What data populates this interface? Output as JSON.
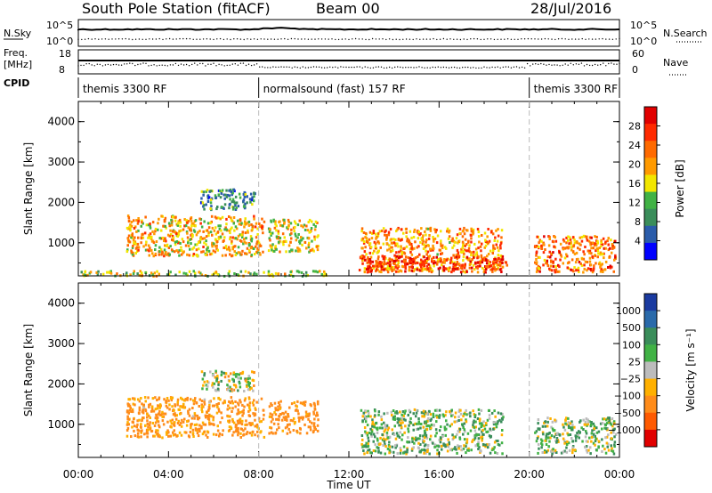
{
  "header": {
    "station": "South Pole Station (fitACF)",
    "beam": "Beam 00",
    "date": "28/Jul/2016"
  },
  "left_labels": {
    "nsky": "N.Sky",
    "freq_line1": "Freq.",
    "freq_line2": "[MHz]",
    "cpid": "CPID"
  },
  "right_labels": {
    "nsearch": "N.Search",
    "nave": "Nave"
  },
  "noise_axis": {
    "top": "10^5",
    "bottom": "10^0"
  },
  "freq_axis": {
    "top": "18",
    "bottom": "8"
  },
  "nave_axis": {
    "top": "60",
    "bottom": "0"
  },
  "cpid_segments": [
    {
      "label": "themis 3300 RF",
      "start": 0,
      "end": 8
    },
    {
      "label": "normalsound (fast) 157 RF",
      "start": 8,
      "end": 20
    },
    {
      "label": "themis 3300 RF",
      "start": 20,
      "end": 24
    }
  ],
  "colors": {
    "power": [
      "#0000ff",
      "#2a5caa",
      "#3a8d5a",
      "#41b245",
      "#f2e600",
      "#ff9a00",
      "#ff6a00",
      "#ff2a00",
      "#e10000"
    ],
    "velocity": [
      "#e10000",
      "#ff5a00",
      "#ff8c1a",
      "#ffb000",
      "#bcbcbc",
      "#41b245",
      "#3a8d5a",
      "#2a6aaa",
      "#1a3aa0"
    ]
  },
  "chart_data": [
    {
      "type": "heatmap",
      "title": "",
      "xlabel": "Time UT",
      "ylabel": "Slant Range [km]",
      "xlim": [
        0,
        24
      ],
      "ylim": [
        180,
        4500
      ],
      "x_ticks": [
        "00:00",
        "04:00",
        "08:00",
        "12:00",
        "16:00",
        "20:00",
        "00:00"
      ],
      "y_ticks": [
        "1000",
        "2000",
        "3000",
        "4000"
      ],
      "colorbar": {
        "label": "Power [dB]",
        "ticks": [
          "4",
          "8",
          "12",
          "16",
          "20",
          "24",
          "28"
        ],
        "range": [
          0,
          30
        ]
      },
      "regions": [
        {
          "t0": 2.1,
          "t1": 8.2,
          "r0": 700,
          "r1": 1700,
          "value": 18
        },
        {
          "t0": 5.4,
          "t1": 7.8,
          "r0": 1850,
          "r1": 2350,
          "value": 8
        },
        {
          "t0": 8.4,
          "t1": 10.6,
          "r0": 800,
          "r1": 1600,
          "value": 16
        },
        {
          "t0": 12.5,
          "t1": 18.8,
          "r0": 300,
          "r1": 1400,
          "value": 20
        },
        {
          "t0": 12.4,
          "t1": 19.0,
          "r0": 300,
          "r1": 700,
          "value": 26
        },
        {
          "t0": 20.2,
          "t1": 23.8,
          "r0": 300,
          "r1": 1200,
          "value": 22
        },
        {
          "t0": 0,
          "t1": 11,
          "r0": 200,
          "r1": 330,
          "value": 14
        }
      ]
    },
    {
      "type": "heatmap",
      "title": "",
      "xlabel": "Time UT",
      "ylabel": "Slant Range [km]",
      "xlim": [
        0,
        24
      ],
      "ylim": [
        180,
        4500
      ],
      "x_ticks": [
        "00:00",
        "04:00",
        "08:00",
        "12:00",
        "16:00",
        "20:00",
        "00:00"
      ],
      "y_ticks": [
        "1000",
        "2000",
        "3000",
        "4000"
      ],
      "colorbar": {
        "label": "Velocity [m s⁻¹]",
        "ticks": [
          "1000",
          "500",
          "100",
          "25",
          "−25",
          "−100",
          "−500",
          "−1000"
        ]
      },
      "regions": [
        {
          "t0": 2.1,
          "t1": 8.2,
          "r0": 700,
          "r1": 1700,
          "value": -150
        },
        {
          "t0": 5.4,
          "t1": 7.8,
          "r0": 1850,
          "r1": 2350,
          "value": 0
        },
        {
          "t0": 8.4,
          "t1": 10.6,
          "r0": 800,
          "r1": 1600,
          "value": -200
        },
        {
          "t0": 12.5,
          "t1": 18.8,
          "r0": 300,
          "r1": 1400,
          "value": 50
        },
        {
          "t0": 20.2,
          "t1": 23.8,
          "r0": 300,
          "r1": 1200,
          "value": 60
        }
      ]
    }
  ]
}
